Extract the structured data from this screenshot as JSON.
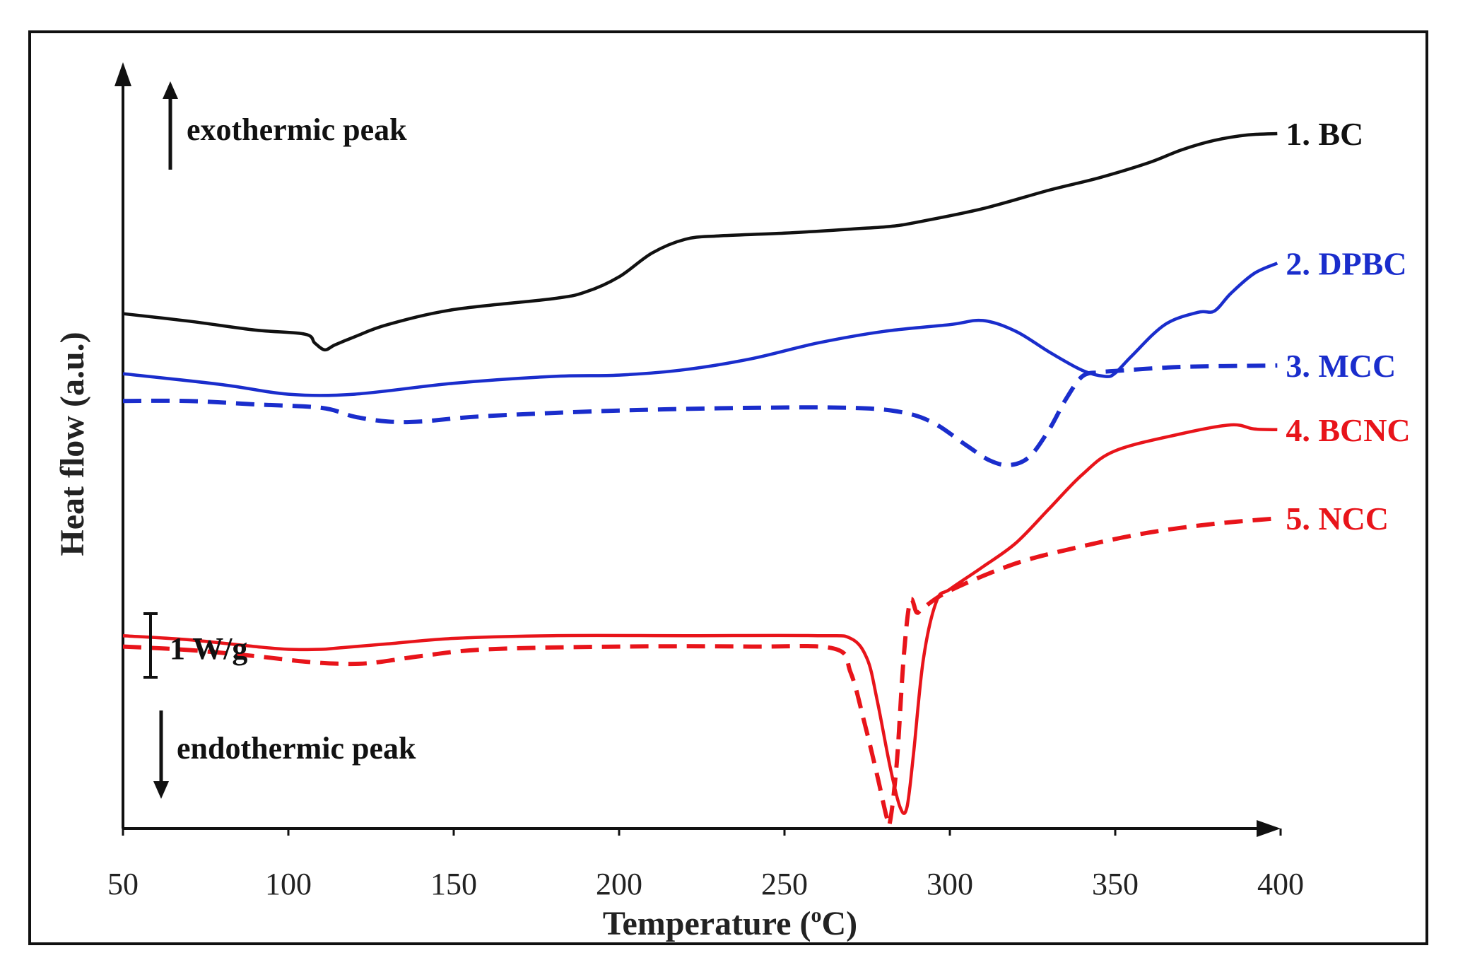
{
  "chart_data": {
    "type": "line",
    "title": "",
    "xlabel": "Temperature (",
    "xlabel_sup": "o",
    "xlabel_unit": "C)",
    "ylabel": "Heat flow (a.u.)",
    "xlim": [
      50,
      400
    ],
    "ylim": [
      0,
      100
    ],
    "xticks": [
      50,
      100,
      150,
      200,
      250,
      300,
      350,
      400
    ],
    "xtick_labels": [
      "50",
      "100",
      "150",
      "200",
      "250",
      "300",
      "350",
      "400"
    ],
    "grid": false,
    "annotations": {
      "exo": "exothermic peak",
      "endo": "endothermic peak",
      "scale": "1 W/g"
    },
    "series": [
      {
        "name": "1. BC",
        "color": "#111111",
        "dashed": false,
        "x": [
          50,
          70,
          90,
          105,
          108,
          111,
          114,
          120,
          130,
          150,
          180,
          190,
          200,
          210,
          220,
          230,
          250,
          270,
          282,
          290,
          310,
          330,
          345,
          360,
          370,
          380,
          390,
          399
        ],
        "y": [
          70.6,
          69.5,
          68.2,
          67.6,
          66.3,
          65.3,
          66.0,
          67.2,
          69.0,
          71.2,
          72.8,
          73.8,
          76.0,
          79.5,
          81.5,
          82.0,
          82.4,
          83.0,
          83.4,
          84.0,
          86.0,
          88.7,
          90.5,
          92.7,
          94.6,
          96.0,
          96.8,
          97.0
        ]
      },
      {
        "name": "2. DPBC",
        "color": "#1a2dcc",
        "dashed": false,
        "x": [
          50,
          80,
          100,
          120,
          150,
          180,
          200,
          220,
          240,
          260,
          280,
          300,
          310,
          320,
          330,
          340,
          347,
          350,
          355,
          365,
          375,
          380,
          385,
          392,
          399
        ],
        "y": [
          61.8,
          60.2,
          58.8,
          58.8,
          60.4,
          61.4,
          61.6,
          62.4,
          64.0,
          66.3,
          68.0,
          69.0,
          69.6,
          68.0,
          65.0,
          62.3,
          61.4,
          61.9,
          64.4,
          69.0,
          70.8,
          71.0,
          73.6,
          76.5,
          78.0
        ]
      },
      {
        "name": "3. MCC",
        "color": "#1a2dcc",
        "dashed": true,
        "x": [
          50,
          70,
          90,
          110,
          120,
          130,
          140,
          160,
          200,
          240,
          270,
          285,
          295,
          305,
          312,
          318,
          324,
          330,
          335,
          340,
          345,
          350,
          370,
          399
        ],
        "y": [
          57.8,
          57.8,
          57.3,
          56.8,
          55.5,
          54.8,
          54.8,
          55.6,
          56.4,
          56.8,
          56.8,
          56.2,
          54.6,
          51.3,
          49.1,
          48.4,
          49.6,
          53.6,
          58.0,
          61.4,
          62.0,
          62.2,
          62.8,
          63.0
        ]
      },
      {
        "name": "4. BCNC",
        "color": "#e8141a",
        "dashed": false,
        "x": [
          50,
          70,
          90,
          100,
          110,
          115,
          130,
          150,
          180,
          220,
          260,
          270,
          275,
          278,
          282,
          285,
          287,
          289,
          292,
          296,
          300,
          310,
          320,
          330,
          340,
          350,
          370,
          385,
          392,
          399
        ],
        "y": [
          23.4,
          22.8,
          21.8,
          21.4,
          21.4,
          21.6,
          22.2,
          23.0,
          23.4,
          23.4,
          23.4,
          23.0,
          20.0,
          14.0,
          4.0,
          -1.8,
          -1.8,
          6.0,
          20.0,
          28.5,
          30.2,
          33.5,
          37.0,
          42.0,
          47.0,
          50.5,
          53.0,
          54.3,
          53.7,
          53.6
        ]
      },
      {
        "name": "5. NCC",
        "color": "#e8141a",
        "dashed": true,
        "x": [
          50,
          70,
          90,
          105,
          115,
          125,
          140,
          160,
          200,
          240,
          265,
          270,
          274,
          278,
          281,
          282,
          284,
          286,
          288,
          290,
          292,
          300,
          320,
          340,
          360,
          380,
          399
        ],
        "y": [
          21.8,
          21.3,
          20.4,
          19.6,
          19.3,
          19.4,
          20.4,
          21.4,
          21.8,
          21.8,
          21.5,
          18.0,
          11.0,
          3.0,
          -3.4,
          -3.6,
          5.0,
          20.0,
          28.5,
          26.8,
          27.5,
          30.0,
          34.0,
          36.5,
          38.5,
          39.8,
          40.6
        ]
      }
    ]
  }
}
